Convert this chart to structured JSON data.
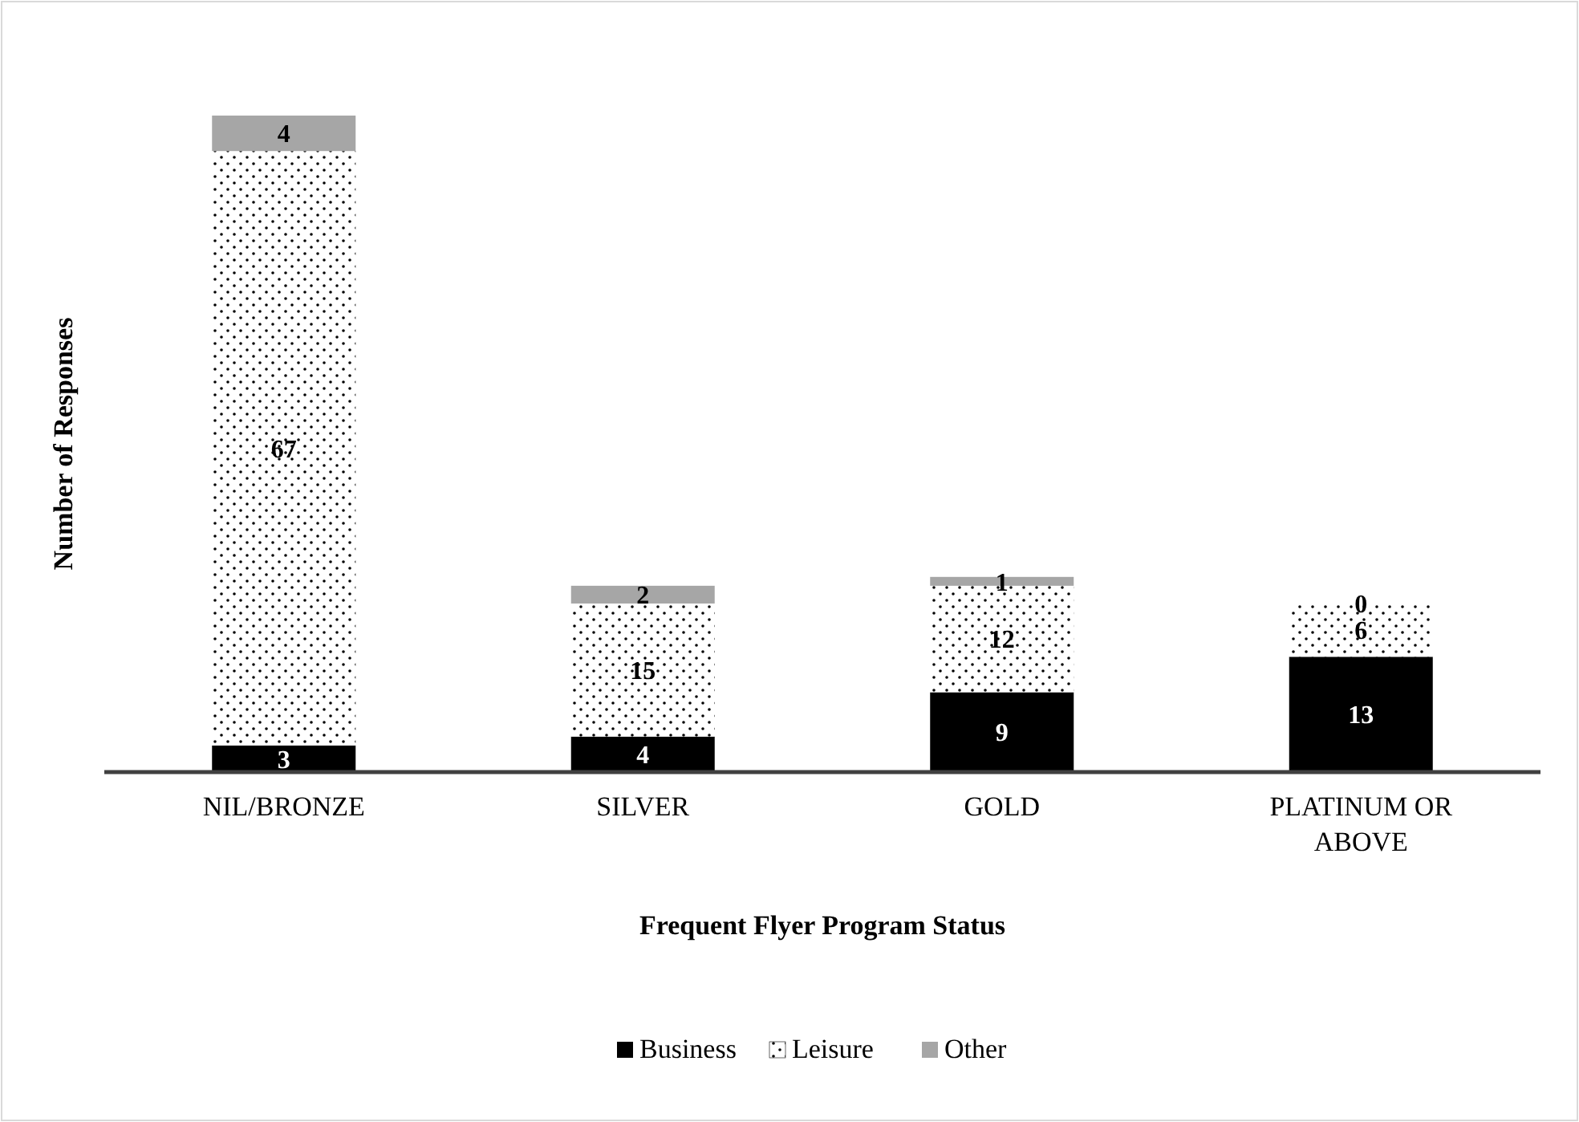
{
  "chart_data": {
    "type": "bar",
    "stacked": true,
    "xlabel": "Frequent Flyer Program Status",
    "ylabel": "Number of Responses",
    "categories": [
      "NIL/BRONZE",
      "SILVER",
      "GOLD",
      "PLATINUM OR ABOVE"
    ],
    "series": [
      {
        "name": "Business",
        "color": "#000000",
        "values": [
          3,
          4,
          9,
          13
        ]
      },
      {
        "name": "Leisure",
        "color": "#ffffff",
        "values": [
          67,
          15,
          12,
          6
        ]
      },
      {
        "name": "Other",
        "color": "#a6a6a6",
        "values": [
          4,
          2,
          1,
          0
        ]
      }
    ],
    "data_labels": true,
    "legend": "bottom"
  }
}
